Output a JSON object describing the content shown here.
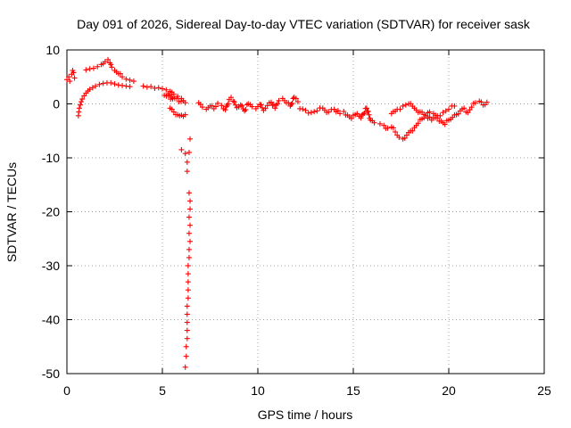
{
  "chart_data": {
    "type": "scatter",
    "title": "Day 091 of 2026, Sidereal Day-to-day VTEC variation (SDTVAR) for receiver sask",
    "xlabel": "GPS time / hours",
    "ylabel": "SDTVAR / TECUs",
    "xlim": [
      0,
      25
    ],
    "ylim": [
      -50,
      10
    ],
    "xticks": [
      0,
      5,
      10,
      15,
      20,
      25
    ],
    "yticks": [
      10,
      0,
      -10,
      -20,
      -30,
      -40,
      -50
    ],
    "xtick_labels": [
      "0",
      "5",
      "10",
      "15",
      "20",
      "25"
    ],
    "ytick_labels": [
      "10",
      "0",
      "-10",
      "-20",
      "-30",
      "-40",
      "-50"
    ],
    "grid": true,
    "marker": "+",
    "color": "#ff0000",
    "segments": [
      {
        "name": "start-cluster",
        "points": [
          [
            0.0,
            4.5
          ],
          [
            0.1,
            5.0
          ],
          [
            0.15,
            4.2
          ],
          [
            0.25,
            5.5
          ],
          [
            0.3,
            6.2
          ],
          [
            0.35,
            5.8
          ],
          [
            0.4,
            4.8
          ]
        ]
      },
      {
        "name": "early-lower-arc",
        "points": [
          [
            0.6,
            -2.2
          ],
          [
            0.62,
            -1.5
          ],
          [
            0.65,
            -0.8
          ],
          [
            0.7,
            -0.2
          ],
          [
            0.75,
            0.4
          ],
          [
            0.8,
            0.9
          ],
          [
            0.9,
            1.5
          ],
          [
            1.0,
            2.0
          ],
          [
            1.1,
            2.4
          ],
          [
            1.2,
            2.7
          ],
          [
            1.35,
            3.0
          ],
          [
            1.5,
            3.3
          ],
          [
            1.7,
            3.6
          ],
          [
            1.9,
            3.8
          ],
          [
            2.1,
            3.9
          ],
          [
            2.3,
            3.9
          ],
          [
            2.5,
            3.7
          ],
          [
            2.7,
            3.5
          ],
          [
            2.9,
            3.4
          ],
          [
            3.1,
            3.3
          ],
          [
            3.3,
            3.2
          ]
        ]
      },
      {
        "name": "early-upper-arc",
        "points": [
          [
            1.0,
            6.3
          ],
          [
            1.2,
            6.5
          ],
          [
            1.4,
            6.6
          ],
          [
            1.6,
            6.9
          ],
          [
            1.8,
            7.3
          ],
          [
            2.0,
            7.8
          ],
          [
            2.15,
            8.2
          ],
          [
            2.25,
            7.6
          ],
          [
            2.35,
            6.8
          ],
          [
            2.5,
            6.2
          ],
          [
            2.7,
            5.6
          ],
          [
            2.9,
            5.0
          ],
          [
            3.1,
            4.6
          ],
          [
            3.3,
            4.4
          ],
          [
            3.5,
            4.2
          ]
        ]
      },
      {
        "name": "morning-cluster",
        "points": [
          [
            4.0,
            3.3
          ],
          [
            4.2,
            3.1
          ],
          [
            4.4,
            3.2
          ],
          [
            4.6,
            2.9
          ],
          [
            4.8,
            3.0
          ],
          [
            5.0,
            2.8
          ],
          [
            5.2,
            2.6
          ],
          [
            5.4,
            2.3
          ],
          [
            5.6,
            1.8
          ],
          [
            5.8,
            1.4
          ],
          [
            6.0,
            1.0
          ],
          [
            6.1,
            0.6
          ],
          [
            6.2,
            0.2
          ],
          [
            5.1,
            1.6
          ],
          [
            5.3,
            1.9
          ],
          [
            5.5,
            1.2
          ]
        ]
      },
      {
        "name": "small-dip",
        "points": [
          [
            5.4,
            -0.8
          ],
          [
            5.8,
            -2.0
          ],
          [
            5.9,
            -2.2
          ],
          [
            6.0,
            -2.1
          ],
          [
            6.1,
            -2.3
          ],
          [
            6.2,
            -2.0
          ]
        ]
      },
      {
        "name": "spike",
        "points": [
          [
            6.0,
            -8.5
          ],
          [
            6.2,
            -9.2
          ],
          [
            6.3,
            -10.8
          ],
          [
            6.3,
            -12.5
          ],
          [
            6.4,
            -9.0
          ],
          [
            6.45,
            -6.5
          ],
          [
            6.4,
            -16.5
          ],
          [
            6.45,
            -18.0
          ],
          [
            6.45,
            -19.5
          ],
          [
            6.4,
            -21.0
          ],
          [
            6.45,
            -22.5
          ],
          [
            6.4,
            -24.0
          ],
          [
            6.45,
            -25.5
          ],
          [
            6.4,
            -27.0
          ],
          [
            6.4,
            -28.5
          ],
          [
            6.35,
            -30.0
          ],
          [
            6.35,
            -31.5
          ],
          [
            6.35,
            -33.0
          ],
          [
            6.35,
            -34.5
          ],
          [
            6.35,
            -36.0
          ],
          [
            6.3,
            -37.5
          ],
          [
            6.3,
            -39.0
          ],
          [
            6.3,
            -40.5
          ],
          [
            6.3,
            -42.0
          ],
          [
            6.3,
            -43.5
          ],
          [
            6.25,
            -45.0
          ],
          [
            6.25,
            -46.8
          ],
          [
            6.2,
            -48.8
          ]
        ]
      },
      {
        "name": "midday-band",
        "points": [
          [
            6.9,
            0.2
          ],
          [
            7.1,
            -0.6
          ],
          [
            7.3,
            -1.0
          ],
          [
            7.5,
            -0.4
          ],
          [
            7.7,
            -0.9
          ],
          [
            7.9,
            0.1
          ],
          [
            8.1,
            -0.3
          ],
          [
            8.3,
            -1.1
          ],
          [
            8.5,
            0.8
          ],
          [
            8.6,
            1.2
          ],
          [
            8.7,
            0.5
          ],
          [
            8.9,
            -0.7
          ],
          [
            9.1,
            -0.2
          ],
          [
            9.3,
            -1.3
          ],
          [
            9.5,
            0.0
          ],
          [
            9.7,
            -0.5
          ],
          [
            9.9,
            -0.9
          ],
          [
            10.1,
            -0.1
          ],
          [
            10.3,
            -1.2
          ],
          [
            10.5,
            -0.3
          ],
          [
            10.7,
            0.3
          ],
          [
            10.9,
            -0.8
          ],
          [
            11.1,
            0.6
          ],
          [
            11.3,
            1.0
          ],
          [
            11.5,
            0.2
          ],
          [
            11.7,
            -0.4
          ],
          [
            11.9,
            1.2
          ],
          [
            12.1,
            0.4
          ]
        ]
      },
      {
        "name": "afternoon-band",
        "points": [
          [
            12.2,
            -0.9
          ],
          [
            12.5,
            -1.2
          ],
          [
            12.8,
            -1.6
          ],
          [
            13.1,
            -1.3
          ],
          [
            13.4,
            -0.8
          ],
          [
            13.7,
            -1.5
          ],
          [
            14.0,
            -1.0
          ],
          [
            14.3,
            -1.8
          ],
          [
            14.5,
            -1.4
          ],
          [
            14.7,
            -2.1
          ],
          [
            14.9,
            -2.7
          ],
          [
            15.2,
            -1.8
          ],
          [
            15.4,
            -2.6
          ],
          [
            15.7,
            -0.8
          ],
          [
            15.9,
            -3.0
          ],
          [
            16.1,
            -3.5
          ]
        ]
      },
      {
        "name": "late-arcs",
        "points": [
          [
            16.4,
            -3.7
          ],
          [
            16.6,
            -4.0
          ],
          [
            16.8,
            -4.5
          ],
          [
            17.0,
            -4.3
          ],
          [
            17.2,
            -5.2
          ],
          [
            17.4,
            -6.2
          ],
          [
            17.6,
            -6.5
          ],
          [
            17.8,
            -5.8
          ],
          [
            18.0,
            -5.0
          ],
          [
            18.2,
            -4.4
          ],
          [
            18.4,
            -3.6
          ],
          [
            18.6,
            -2.8
          ],
          [
            18.8,
            -2.2
          ],
          [
            19.0,
            -1.5
          ],
          [
            19.2,
            -1.8
          ],
          [
            19.4,
            -2.6
          ],
          [
            19.6,
            -3.2
          ],
          [
            19.8,
            -3.8
          ],
          [
            20.0,
            -3.0
          ],
          [
            20.2,
            -2.5
          ],
          [
            20.4,
            -2.0
          ],
          [
            20.6,
            -1.3
          ],
          [
            20.8,
            -0.8
          ],
          [
            21.0,
            -1.6
          ],
          [
            21.2,
            -0.6
          ],
          [
            21.4,
            0.2
          ],
          [
            21.6,
            0.5
          ],
          [
            21.8,
            -0.2
          ],
          [
            22.0,
            0.3
          ]
        ]
      },
      {
        "name": "late-upper-arc",
        "points": [
          [
            17.0,
            -1.8
          ],
          [
            17.3,
            -1.0
          ],
          [
            17.6,
            -0.4
          ],
          [
            17.9,
            0.0
          ],
          [
            18.2,
            -0.8
          ],
          [
            18.5,
            -1.5
          ],
          [
            18.8,
            -2.2
          ],
          [
            19.1,
            -3.0
          ],
          [
            19.4,
            -2.2
          ],
          [
            19.7,
            -1.6
          ],
          [
            20.0,
            -1.0
          ],
          [
            20.3,
            -0.4
          ]
        ]
      }
    ]
  }
}
